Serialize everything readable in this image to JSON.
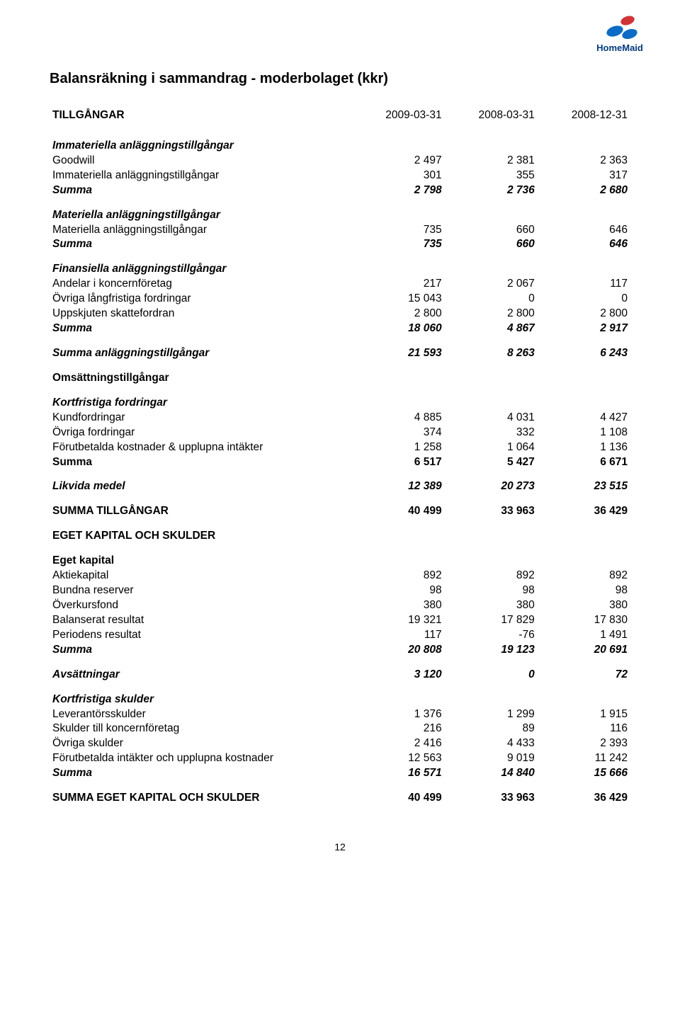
{
  "meta": {
    "page_number": "12",
    "logo_text": "HomeMaid",
    "logo_colors": {
      "red": "#d13438",
      "blue": "#0a6cc4",
      "text": "#003a7a"
    }
  },
  "title": "Balansräkning i sammandrag - moderbolaget (kkr)",
  "header": {
    "col0": "TILLGÅNGAR",
    "col1": "2009-03-31",
    "col2": "2008-03-31",
    "col3": "2008-12-31"
  },
  "rows": [
    {
      "type": "spacer-lg"
    },
    {
      "type": "section",
      "label": "Immateriella anläggningstillgångar"
    },
    {
      "type": "data",
      "label": "Goodwill",
      "c1": "2 497",
      "c2": "2 381",
      "c3": "2 363"
    },
    {
      "type": "data",
      "label": "Immateriella anläggningstillgångar",
      "c1": "301",
      "c2": "355",
      "c3": "317"
    },
    {
      "type": "sum",
      "label": "Summa",
      "c1": "2 798",
      "c2": "2 736",
      "c3": "2 680"
    },
    {
      "type": "spacer"
    },
    {
      "type": "section",
      "label": "Materiella anläggningstillgångar"
    },
    {
      "type": "data",
      "label": "Materiella anläggningstillgångar",
      "c1": "735",
      "c2": "660",
      "c3": "646"
    },
    {
      "type": "sum",
      "label": "Summa",
      "c1": "735",
      "c2": "660",
      "c3": "646"
    },
    {
      "type": "spacer"
    },
    {
      "type": "section",
      "label": "Finansiella anläggningstillgångar"
    },
    {
      "type": "data",
      "label": "Andelar i koncernföretag",
      "c1": "217",
      "c2": "2 067",
      "c3": "117"
    },
    {
      "type": "data",
      "label": "Övriga långfristiga fordringar",
      "c1": "15 043",
      "c2": "0",
      "c3": "0"
    },
    {
      "type": "data",
      "label": "Uppskjuten skattefordran",
      "c1": "2 800",
      "c2": "2 800",
      "c3": "2 800"
    },
    {
      "type": "sum",
      "label": "Summa",
      "c1": "18 060",
      "c2": "4 867",
      "c3": "2 917"
    },
    {
      "type": "spacer"
    },
    {
      "type": "sum",
      "label": "Summa anläggningstillgångar",
      "c1": "21 593",
      "c2": "8 263",
      "c3": "6 243"
    },
    {
      "type": "spacer"
    },
    {
      "type": "boldheader",
      "label": "Omsättningstillgångar"
    },
    {
      "type": "spacer"
    },
    {
      "type": "section",
      "label": "Kortfristiga fordringar"
    },
    {
      "type": "data",
      "label": "Kundfordringar",
      "c1": "4 885",
      "c2": "4 031",
      "c3": "4 427"
    },
    {
      "type": "data",
      "label": "Övriga fordringar",
      "c1": "374",
      "c2": "332",
      "c3": "1 108"
    },
    {
      "type": "data",
      "label": "Förutbetalda kostnader & upplupna intäkter",
      "c1": "1 258",
      "c2": "1 064",
      "c3": "1 136"
    },
    {
      "type": "boldrow",
      "label": "Summa",
      "c1": "6 517",
      "c2": "5 427",
      "c3": "6 671"
    },
    {
      "type": "spacer"
    },
    {
      "type": "sum",
      "label": "Likvida medel",
      "c1": "12 389",
      "c2": "20 273",
      "c3": "23 515"
    },
    {
      "type": "spacer"
    },
    {
      "type": "boldrow",
      "label": "SUMMA TILLGÅNGAR",
      "c1": "40 499",
      "c2": "33 963",
      "c3": "36 429"
    },
    {
      "type": "spacer"
    },
    {
      "type": "boldheader",
      "label": "EGET KAPITAL OCH SKULDER"
    },
    {
      "type": "spacer"
    },
    {
      "type": "boldheader",
      "label": "Eget kapital"
    },
    {
      "type": "data",
      "label": "Aktiekapital",
      "c1": "892",
      "c2": "892",
      "c3": "892"
    },
    {
      "type": "data",
      "label": "Bundna reserver",
      "c1": "98",
      "c2": "98",
      "c3": "98"
    },
    {
      "type": "data",
      "label": "Överkursfond",
      "c1": "380",
      "c2": "380",
      "c3": "380"
    },
    {
      "type": "data",
      "label": "Balanserat resultat",
      "c1": "19 321",
      "c2": "17 829",
      "c3": "17 830"
    },
    {
      "type": "data",
      "label": "Periodens resultat",
      "c1": "117",
      "c2": "-76",
      "c3": "1 491"
    },
    {
      "type": "sum",
      "label": "Summa",
      "c1": "20 808",
      "c2": "19 123",
      "c3": "20 691"
    },
    {
      "type": "spacer"
    },
    {
      "type": "sum",
      "label": "Avsättningar",
      "c1": "3 120",
      "c2": "0",
      "c3": "72"
    },
    {
      "type": "spacer"
    },
    {
      "type": "section",
      "label": "Kortfristiga skulder"
    },
    {
      "type": "data",
      "label": "Leverantörsskulder",
      "c1": "1 376",
      "c2": "1 299",
      "c3": "1 915"
    },
    {
      "type": "data",
      "label": "Skulder till koncernföretag",
      "c1": "216",
      "c2": "89",
      "c3": "116"
    },
    {
      "type": "data",
      "label": "Övriga skulder",
      "c1": "2 416",
      "c2": "4 433",
      "c3": "2 393"
    },
    {
      "type": "data",
      "label": "Förutbetalda intäkter och upplupna kostnader",
      "c1": "12 563",
      "c2": "9 019",
      "c3": "11 242"
    },
    {
      "type": "sum",
      "label": "Summa",
      "c1": "16 571",
      "c2": "14 840",
      "c3": "15 666"
    },
    {
      "type": "spacer"
    },
    {
      "type": "boldrow",
      "label": "SUMMA EGET KAPITAL OCH SKULDER",
      "c1": "40 499",
      "c2": "33 963",
      "c3": "36 429"
    }
  ]
}
